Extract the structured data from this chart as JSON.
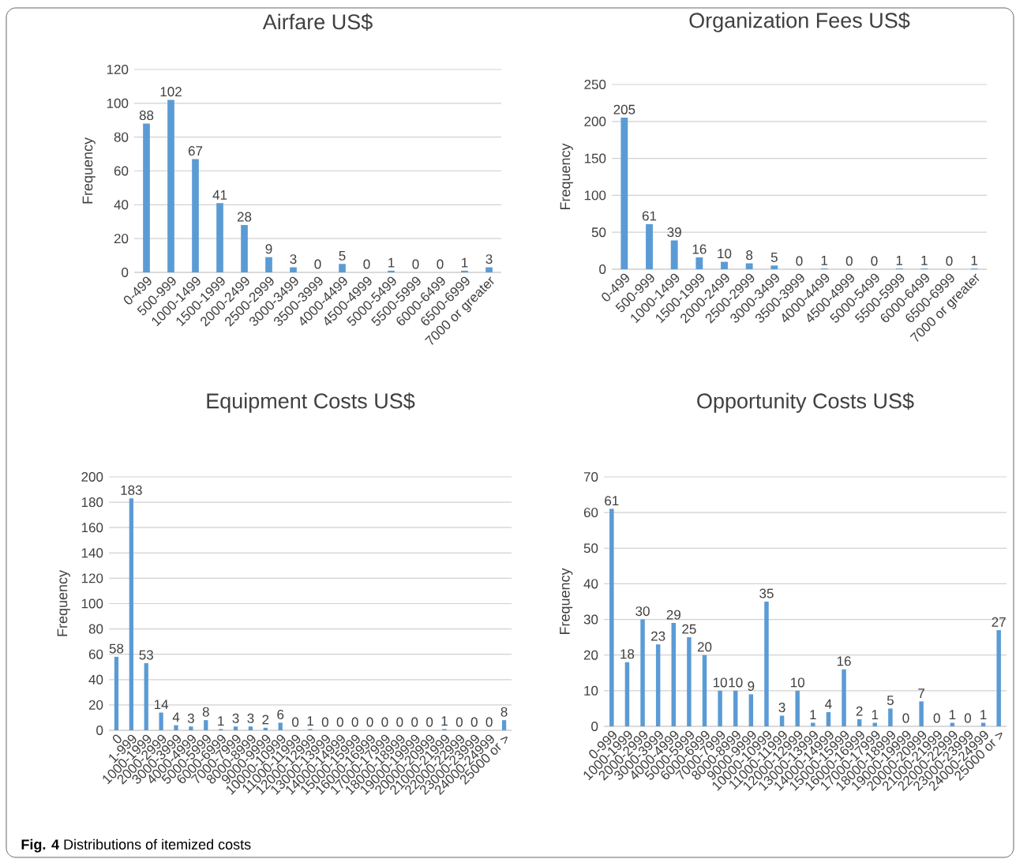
{
  "chart_data": [
    {
      "type": "bar",
      "title": "Airfare US$",
      "ylabel": "Frequency",
      "color": "#5b9bd5",
      "grid": "y",
      "data_labels": true,
      "categories": [
        "0-499",
        "500-999",
        "1000-1499",
        "1500-1999",
        "2000-2499",
        "2500-2999",
        "3000-3499",
        "3500-3999",
        "4000-4499",
        "4500-4999",
        "5000-5499",
        "5500-5999",
        "6000-6499",
        "6500-6999",
        "7000 or greater"
      ],
      "values": [
        88,
        102,
        67,
        41,
        28,
        9,
        3,
        0,
        5,
        0,
        1,
        0,
        0,
        1,
        3
      ],
      "ylim": [
        0,
        120
      ],
      "yticks": [
        0,
        20,
        40,
        60,
        80,
        100,
        120
      ]
    },
    {
      "type": "bar",
      "title": "Organization Fees US$",
      "ylabel": "Frequency",
      "color": "#5b9bd5",
      "grid": "y",
      "data_labels": true,
      "categories": [
        "0-499",
        "500-999",
        "1000-1499",
        "1500-1999",
        "2000-2499",
        "2500-2999",
        "3000-3499",
        "3500-3999",
        "4000-4499",
        "4500-4999",
        "5000-5499",
        "5500-5999",
        "6000-6499",
        "6500-6999",
        "7000 or greater"
      ],
      "values": [
        205,
        61,
        39,
        16,
        10,
        8,
        5,
        0,
        1,
        0,
        0,
        1,
        1,
        0,
        1
      ],
      "ylim": [
        0,
        250
      ],
      "yticks": [
        0,
        50,
        100,
        150,
        200,
        250
      ]
    },
    {
      "type": "bar",
      "title": "Equipment Costs US$",
      "ylabel": "Frequency",
      "color": "#5b9bd5",
      "grid": "y",
      "data_labels": true,
      "categories": [
        "0",
        "1-999",
        "1000-1999",
        "2000-2999",
        "3000-3999",
        "4000-4999",
        "5000-5999",
        "6000-6999",
        "7000-7999",
        "8000-8999",
        "9000-9999",
        "10000-10999",
        "11000-11999",
        "12000-12999",
        "13000-13999",
        "14000-14999",
        "15000-15999",
        "16000-16999",
        "17000-17999",
        "18000-18999",
        "19000-19999",
        "20000-20999",
        "21000-21999",
        "22000-22999",
        "23000-23999",
        "24000-24999",
        "25000 or >"
      ],
      "values": [
        58,
        183,
        53,
        14,
        4,
        3,
        8,
        1,
        3,
        3,
        2,
        6,
        0,
        1,
        0,
        0,
        0,
        0,
        0,
        0,
        0,
        0,
        1,
        0,
        0,
        0,
        8
      ],
      "ylim": [
        0,
        200
      ],
      "yticks": [
        0,
        20,
        40,
        60,
        80,
        100,
        120,
        140,
        160,
        180,
        200
      ]
    },
    {
      "type": "bar",
      "title": "Opportunity Costs US$",
      "ylabel": "Frequency",
      "color": "#5b9bd5",
      "grid": "y",
      "data_labels": true,
      "categories": [
        "0-999",
        "1000-1999",
        "2000-2999",
        "3000-3999",
        "4000-4999",
        "5000-5999",
        "6000-6999",
        "7000-7999",
        "8000-8999",
        "9000-9999",
        "10000-10999",
        "11000-11999",
        "12000-12999",
        "13000-13999",
        "14000-14999",
        "15000-15999",
        "16000-16999",
        "17000-17999",
        "18000-18999",
        "19000-19999",
        "20000-20999",
        "21000-21999",
        "22000-22999",
        "23000-23999",
        "24000-24999",
        "25000 or >"
      ],
      "values": [
        61,
        18,
        30,
        23,
        29,
        25,
        20,
        10,
        10,
        9,
        35,
        3,
        10,
        1,
        4,
        16,
        2,
        1,
        5,
        0,
        7,
        0,
        1,
        0,
        1,
        27
      ],
      "ylim": [
        0,
        70
      ],
      "yticks": [
        0,
        10,
        20,
        30,
        40,
        50,
        60,
        70
      ],
      "annotations": [
        "**Fig. 4** Distributions of itemized costs"
      ]
    }
  ]
}
